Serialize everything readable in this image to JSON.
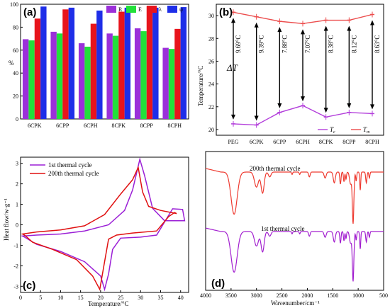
{
  "colors": {
    "R": "#9b30d9",
    "E": "#22e03a",
    "lambda": "#e8141c",
    "psi": "#1e2ee8",
    "Tc": "#b33fdb",
    "Tm": "#ec4d4d",
    "c1": "#9b1fd6",
    "c200": "#e01010",
    "d1": "#a21fcf",
    "d200": "#ee3a30"
  },
  "chart_data": [
    {
      "panel": "(a)",
      "type": "bar",
      "ylabel": "%",
      "ylim": [
        0,
        100
      ],
      "yticks": [
        "0",
        "20",
        "40",
        "60",
        "80",
        "100"
      ],
      "categories": [
        "6CPK",
        "6CPP",
        "6CPH",
        "8CPK",
        "8CPP",
        "8CPH"
      ],
      "series": [
        {
          "name": "R",
          "values": [
            69.5,
            76,
            66,
            74.5,
            79,
            62
          ]
        },
        {
          "name": "E",
          "values": [
            68.5,
            74.5,
            63,
            72.5,
            76.5,
            61
          ]
        },
        {
          "name": "λ",
          "values": [
            87.5,
            95.5,
            83,
            93.5,
            98.5,
            78.5
          ]
        },
        {
          "name": "ψ",
          "values": [
            98,
            97,
            94.5,
            97,
            97,
            97.5
          ]
        }
      ],
      "legend": "top-right"
    },
    {
      "panel": "(b)",
      "type": "line",
      "ylabel": "Temperature/°C",
      "ylim": [
        19.5,
        31
      ],
      "yticks": [
        "20",
        "22",
        "24",
        "26",
        "28",
        "30"
      ],
      "categories": [
        "PEG",
        "6CPK",
        "6CPP",
        "6CPH",
        "8CPK",
        "8CPP",
        "8CPH"
      ],
      "series": [
        {
          "name": "Tc",
          "values": [
            20.5,
            20.4,
            21.5,
            22.1,
            21.1,
            21.5,
            21.4
          ]
        },
        {
          "name": "Tm",
          "values": [
            30.3,
            29.9,
            29.5,
            29.3,
            29.6,
            29.6,
            30.1
          ]
        }
      ],
      "delta_symbol": "ΔT",
      "annotations": [
        "9.69°C",
        "9.39°C",
        "7.88°C",
        "7.07°C",
        "8.38°C",
        "8.12°C",
        "8.63°C"
      ],
      "legend": "bottom-right"
    },
    {
      "panel": "(c)",
      "type": "line",
      "xlabel": "Temperature/°C",
      "ylabel": "Heat flow/w·g⁻¹",
      "xlim": [
        0,
        42
      ],
      "ylim": [
        -3.3,
        3.3
      ],
      "xticks": [
        "0",
        "5",
        "10",
        "15",
        "20",
        "25",
        "30",
        "35",
        "40"
      ],
      "yticks": [
        "-3",
        "-2",
        "-1",
        "0",
        "1",
        "2",
        "3"
      ],
      "series": [
        {
          "name": "1st thermal cycle"
        },
        {
          "name": "200th thermal cycle"
        }
      ],
      "legend": "top-left"
    },
    {
      "panel": "(d)",
      "type": "line",
      "xlabel": "Wavenumber/cm⁻¹",
      "xlim": [
        4000,
        500
      ],
      "xticks": [
        "4000",
        "3500",
        "3000",
        "2500",
        "2000",
        "1500",
        "1000",
        "500"
      ],
      "series": [
        {
          "name": "200th thermal cycle"
        },
        {
          "name": "1st thermal cycle"
        }
      ]
    }
  ]
}
